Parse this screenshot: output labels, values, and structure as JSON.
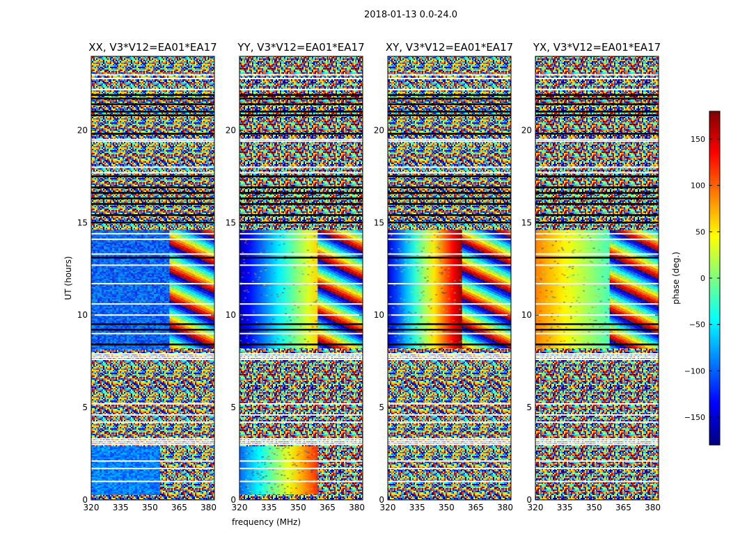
{
  "figure": {
    "suptitle": "2018-01-13 0.0-24.0"
  },
  "colors": {
    "jet_stops": [
      "#00007f",
      "#0000ff",
      "#007fff",
      "#00ffff",
      "#7fff7f",
      "#ffff00",
      "#ff7f00",
      "#ff0000",
      "#7f0000"
    ],
    "missing_rows": "#ffffff",
    "flagged_rows": "#000000",
    "frame": "#000000"
  },
  "chart_data": [
    {
      "type": "heatmap",
      "title": "XX, V3*V12=EA01*EA17",
      "xlabel": "",
      "ylabel": "UT (hours)",
      "xlim": [
        320,
        383
      ],
      "ylim": [
        0,
        24
      ],
      "x_ticks": [
        320,
        335,
        350,
        365,
        380
      ],
      "y_ticks": [
        0,
        5,
        10,
        15,
        20
      ],
      "z_label": "phase (deg.)",
      "zlim": [
        -180,
        180
      ],
      "regions": [
        {
          "y": [
            8.2,
            14.6
          ],
          "x": [
            320,
            360
          ],
          "phase": -100,
          "note": "coherent"
        },
        {
          "y": [
            8.2,
            14.6
          ],
          "x": [
            360,
            383
          ],
          "phase": null,
          "note": "fringes"
        },
        {
          "y": [
            0.3,
            2.9
          ],
          "x": [
            320,
            355
          ],
          "phase": -90,
          "note": "coherent"
        }
      ]
    },
    {
      "type": "heatmap",
      "title": "YY, V3*V12=EA01*EA17",
      "xlabel": "frequency (MHz)",
      "ylabel": "",
      "xlim": [
        320,
        383
      ],
      "ylim": [
        0,
        24
      ],
      "x_ticks": [
        320,
        335,
        350,
        365,
        380
      ],
      "y_ticks": [
        0,
        5,
        10,
        15,
        20
      ],
      "z_label": "phase (deg.)",
      "zlim": [
        -180,
        180
      ],
      "regions": [
        {
          "y": [
            8.2,
            14.6
          ],
          "x": [
            320,
            360
          ],
          "phase_from": -160,
          "phase_to": 60,
          "note": "gradient"
        },
        {
          "y": [
            8.2,
            14.6
          ],
          "x": [
            360,
            383
          ],
          "phase": null,
          "note": "fringes"
        },
        {
          "y": [
            0.3,
            2.9
          ],
          "x": [
            320,
            360
          ],
          "phase_from": -100,
          "phase_to": 120,
          "note": "gradient"
        }
      ]
    },
    {
      "type": "heatmap",
      "title": "XY, V3*V12=EA01*EA17",
      "xlabel": "",
      "ylabel": "",
      "xlim": [
        320,
        383
      ],
      "ylim": [
        0,
        24
      ],
      "x_ticks": [
        320,
        335,
        350,
        365,
        380
      ],
      "y_ticks": [
        0,
        5,
        10,
        15,
        20
      ],
      "z_label": "phase (deg.)",
      "zlim": [
        -180,
        180
      ],
      "regions": [
        {
          "y": [
            8.2,
            14.6
          ],
          "x": [
            320,
            358
          ],
          "phase_from": -150,
          "phase_to": 175,
          "note": "noisy gradient"
        },
        {
          "y": [
            8.2,
            14.6
          ],
          "x": [
            358,
            383
          ],
          "phase": null,
          "note": "fringes"
        }
      ]
    },
    {
      "type": "heatmap",
      "title": "YX, V3*V12=EA01*EA17",
      "xlabel": "",
      "ylabel": "",
      "xlim": [
        320,
        383
      ],
      "ylim": [
        0,
        24
      ],
      "x_ticks": [
        320,
        335,
        350,
        365,
        380
      ],
      "y_ticks": [
        0,
        5,
        10,
        15,
        20
      ],
      "z_label": "phase (deg.)",
      "zlim": [
        -180,
        180
      ],
      "regions": [
        {
          "y": [
            8.2,
            14.6
          ],
          "x": [
            320,
            358
          ],
          "phase_from": 90,
          "phase_to": -20,
          "note": "noisy gradient"
        },
        {
          "y": [
            8.2,
            14.6
          ],
          "x": [
            358,
            383
          ],
          "phase": null,
          "note": "fringes"
        }
      ]
    }
  ],
  "colorbar": {
    "label": "phase (deg.)",
    "range": [
      -180,
      180
    ],
    "ticks": [
      150,
      100,
      50,
      0,
      -50,
      -100,
      -150
    ],
    "tick_labels": [
      "150",
      "100",
      "50",
      "0",
      "−50",
      "−100",
      "−150"
    ]
  },
  "blank_rows_hours": [
    3.0,
    3.1,
    3.2,
    3.3,
    7.6,
    7.7,
    7.8,
    7.9,
    19.4,
    19.5,
    22.2,
    22.8,
    23.0,
    1.0,
    1.7,
    2.1,
    4.2,
    4.6,
    5.2,
    12.7,
    13.3,
    10.0,
    10.6,
    11.7,
    9.0,
    14.1,
    14.4,
    18.0,
    17.7
  ],
  "flag_rows_hours": [
    21.9,
    21.7,
    21.4,
    21.0,
    20.8,
    19.8,
    16.9,
    16.6,
    16.3,
    16.0,
    15.4,
    15.0,
    13.1,
    9.5,
    9.2,
    8.4,
    17.5
  ]
}
